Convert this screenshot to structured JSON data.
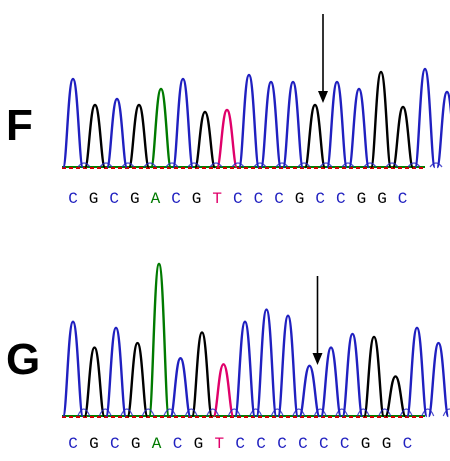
{
  "panels": [
    {
      "label": "F",
      "sequence": [
        "C",
        "G",
        "C",
        "G",
        "A",
        "C",
        "G",
        "T",
        "C",
        "C",
        "C",
        "G",
        "C",
        "C",
        "G",
        "G",
        "C"
      ],
      "arrow_index": 11,
      "peak_heights": [
        0.88,
        0.62,
        0.68,
        0.62,
        0.78,
        0.88,
        0.55,
        0.57,
        0.92,
        0.85,
        0.85,
        0.62,
        0.85,
        0.78,
        0.95,
        0.6,
        0.98,
        0.75
      ]
    },
    {
      "label": "G",
      "sequence": [
        "C",
        "G",
        "C",
        "G",
        "A",
        "C",
        "G",
        "T",
        "C",
        "C",
        "C",
        "C",
        "C",
        "C",
        "G",
        "G",
        "C"
      ],
      "arrow_index": 11,
      "peak_heights": [
        0.62,
        0.45,
        0.58,
        0.48,
        1.0,
        0.38,
        0.55,
        0.34,
        0.62,
        0.7,
        0.66,
        0.33,
        0.45,
        0.54,
        0.52,
        0.26,
        0.58,
        0.48
      ]
    }
  ],
  "colors": {
    "C": "#2020c0",
    "G": "#000000",
    "A": "#007a00",
    "T": "#e0006a",
    "baseline_red": "#d00000",
    "baseline_green": "#008000"
  }
}
